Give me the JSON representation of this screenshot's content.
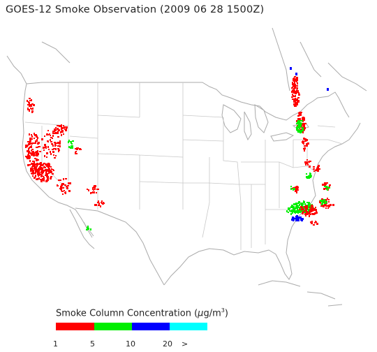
{
  "title": "GOES-12 Smoke Observation (2009 06 28  1500Z)",
  "legend": {
    "title_prefix": "Smoke Column Concentration (",
    "unit_mu": "μ",
    "unit_g": "g/m",
    "unit_sup": "3",
    "unit_close": ")",
    "bins": [
      {
        "name": "1-5",
        "color": "#ff0000"
      },
      {
        "name": "5-10",
        "color": "#00ee00"
      },
      {
        "name": "10-20",
        "color": "#0000ff"
      },
      {
        "name": "20+",
        "color": "#00ffff"
      }
    ],
    "ticks": [
      "1",
      "5",
      "10",
      "20",
      ">"
    ]
  },
  "colors": {
    "outline": "#aaaaaa",
    "state": "#c8c8c8"
  }
}
